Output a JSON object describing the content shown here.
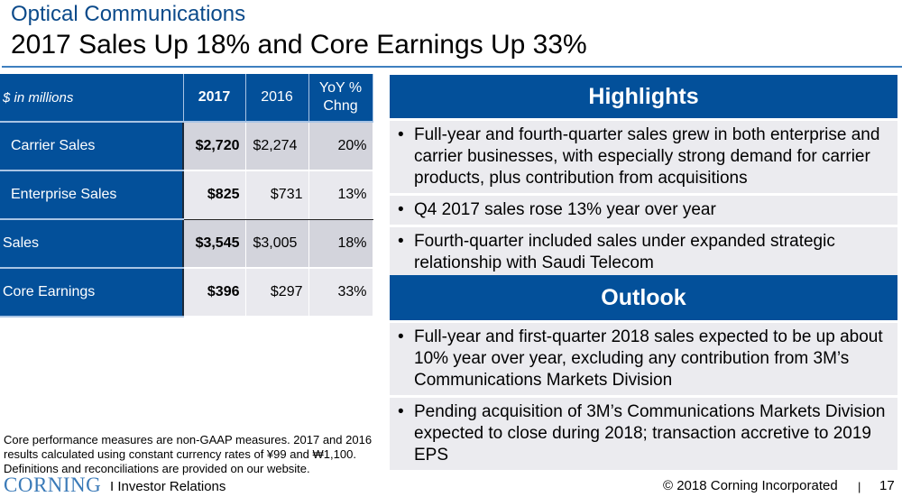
{
  "header": {
    "subtitle": "Optical Communications",
    "title": "2017 Sales Up 18% and Core Earnings Up 33%"
  },
  "table": {
    "unit_label": "$ in millions",
    "columns": [
      "2017",
      "2016",
      "YoY % Chng"
    ],
    "rows": [
      {
        "label": "Carrier Sales",
        "v2017": "$2,720",
        "v2016": "$2,274",
        "yoy": "20%"
      },
      {
        "label": "Enterprise Sales",
        "v2017": "$825",
        "v2016": "$731",
        "yoy": "13%"
      },
      {
        "label": "Sales",
        "v2017": "$3,545",
        "v2016": "$3,005",
        "yoy": "18%"
      },
      {
        "label": "Core Earnings",
        "v2017": "$396",
        "v2016": "$297",
        "yoy": "33%"
      }
    ]
  },
  "highlights": {
    "title": "Highlights",
    "items": [
      "Full-year and fourth-quarter sales grew in both enterprise and carrier businesses, with especially strong demand for carrier products, plus contribution from acquisitions",
      "Q4 2017 sales rose 13% year over year",
      "Fourth-quarter included sales under expanded strategic relationship with Saudi Telecom"
    ]
  },
  "outlook": {
    "title": "Outlook",
    "items": [
      "Full-year and first-quarter 2018 sales expected to be up about 10% year over year, excluding any contribution from 3M’s Communications Markets Division",
      "Pending acquisition of 3M’s Communications Markets Division expected to close during 2018; transaction accretive to 2019 EPS"
    ]
  },
  "footnote": "Core performance measures are non-GAAP measures. 2017 and 2016 results calculated using constant currency rates of ¥99 and ₩1,100. Definitions and reconciliations are provided on our website.",
  "footer": {
    "logo": "CORNING",
    "section": "I  Investor Relations",
    "copyright": "© 2018 Corning Incorporated",
    "separator": "|",
    "page": "17"
  },
  "bullet": "•"
}
